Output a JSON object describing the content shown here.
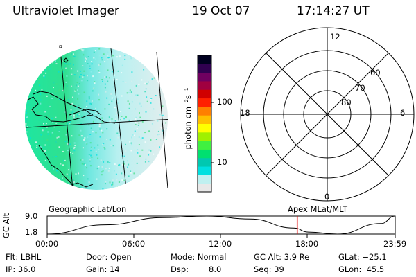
{
  "header": {
    "instrument": "Ultraviolet Imager",
    "date": "19 Oct 07",
    "time": "17:14:27 UT"
  },
  "color_bar": {
    "unit_label": "photon cm⁻²s⁻¹",
    "ticks": [
      "100",
      "10"
    ],
    "scale": "log",
    "colors": [
      "#e8e8e8",
      "#c0f0f0",
      "#00e0e0",
      "#00c8b0",
      "#00e070",
      "#40f040",
      "#a0f000",
      "#ffff00",
      "#ffc000",
      "#ff8000",
      "#ff2000",
      "#d00000",
      "#a00040",
      "#700060",
      "#300050",
      "#000020"
    ]
  },
  "polar_plot": {
    "hour_labels": {
      "top": "12",
      "left": "18",
      "right": "6",
      "bottom": "0"
    },
    "lat_labels": [
      "60",
      "70",
      "80"
    ]
  },
  "orbit_panel": {
    "left_caption": "Geographic Lat/Lon",
    "right_caption": "Apex MLat/MLT",
    "y_axis_label": "GC Alt",
    "y_ticks": [
      "9.0",
      "1.8"
    ],
    "x_ticks": [
      "00:00",
      "06:00",
      "12:00",
      "18:00",
      "23:59"
    ],
    "current_time_marker": "17:14"
  },
  "status": {
    "filter": "Flt: LBHL",
    "door": "Door: Open",
    "mode": "Mode: Normal",
    "gc_alt": "GC Alt: 3.9 Re",
    "glat": "GLat: −25.1",
    "ip": "IP: 36.0",
    "gain": "Gain: 14",
    "dsp_label": "Dsp:",
    "dsp_value": "8.0",
    "seq": "Seq: 39",
    "glon": "GLon:  45.5"
  },
  "chart_data": [
    {
      "type": "line",
      "title": "",
      "xlabel": "",
      "ylabel": "GC Alt",
      "x": [
        "00:00",
        "04:00",
        "08:00",
        "11:00",
        "14:00",
        "17:00",
        "18:00",
        "20:00",
        "23:00",
        "23:59"
      ],
      "series": [
        {
          "values": [
            1.8,
            5.5,
            8.4,
            9.0,
            7.8,
            4.2,
            2.6,
            1.8,
            6.0,
            9.0
          ]
        }
      ],
      "ylim": [
        1.8,
        9.0
      ],
      "x_ticks": [
        "00:00",
        "06:00",
        "12:00",
        "18:00",
        "23:59"
      ]
    },
    {
      "type": "heatmap",
      "title": "",
      "colorbar_label": "photon cm⁻²s⁻¹",
      "colorbar_ticks": [
        "10",
        "100"
      ],
      "colorbar_scale": "log"
    }
  ]
}
